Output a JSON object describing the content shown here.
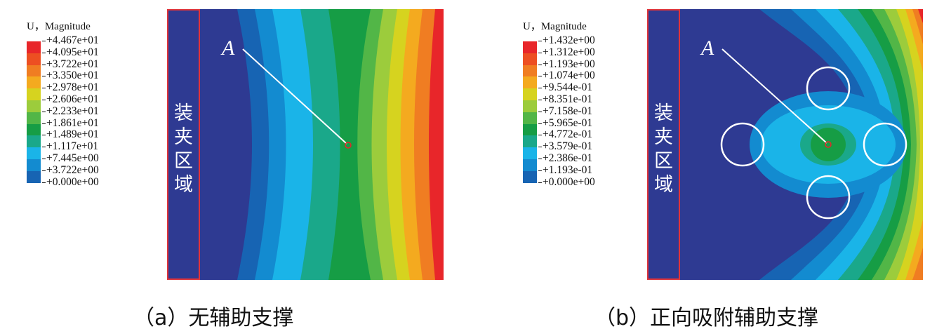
{
  "legend_colors": [
    "#e8262a",
    "#ed4f22",
    "#f07d22",
    "#f4aa1f",
    "#d6d31f",
    "#9ccc3c",
    "#52b647",
    "#169d45",
    "#1aa88a",
    "#1ab4e8",
    "#138bd0",
    "#1764b3",
    "#2e3a92"
  ],
  "panels": [
    {
      "id": "a",
      "legend": {
        "title": "U，Magnitude",
        "labels": [
          "+4.467e+01",
          "+4.095e+01",
          "+3.722e+01",
          "+3.350e+01",
          "+2.978e+01",
          "+2.606e+01",
          "+2.233e+01",
          "+1.861e+01",
          "+1.489e+01",
          "+1.117e+01",
          "+7.445e+00",
          "+3.722e+00",
          "+0.000e+00"
        ]
      },
      "clamp_region": [
        "装",
        "夹",
        "区",
        "域"
      ],
      "point_label": "A",
      "caption": "（a）无辅助支撑"
    },
    {
      "id": "b",
      "legend": {
        "title": "U，Magnitude",
        "labels": [
          "+1.432e+00",
          "+1.312e+00",
          "+1.193e+00",
          "+1.074e+00",
          "+9.544e-01",
          "+8.351e-01",
          "+7.158e-01",
          "+5.965e-01",
          "+4.772e-01",
          "+3.579e-01",
          "+2.386e-01",
          "+1.193e-01",
          "+0.000e+00"
        ]
      },
      "clamp_region": [
        "装",
        "夹",
        "区",
        "域"
      ],
      "point_label": "A",
      "caption": "（b）正向吸附辅助支撑"
    }
  ]
}
